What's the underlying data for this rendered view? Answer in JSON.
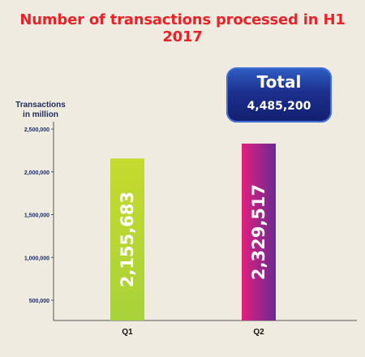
{
  "total": {
    "label": "Total",
    "value": "4,485,200"
  },
  "chart_data": {
    "type": "bar",
    "title": "Number of transactions processed in H1 2017",
    "ylabel": "Transactions in million",
    "xlabel": "",
    "categories": [
      "Q1",
      "Q2"
    ],
    "values": [
      2155683,
      2329517
    ],
    "value_labels": [
      "2,155,683",
      "2,329,517"
    ],
    "yticks": [
      500000,
      1000000,
      1500000,
      2000000,
      2500000
    ],
    "ytick_labels": [
      "500,000",
      "1,000,000",
      "1,500,000",
      "2,000,000",
      "2,500,000"
    ],
    "ylim": [
      0,
      2500000
    ],
    "grid": false,
    "colors": {
      "q1_top": "#c5da2e",
      "q1_bottom": "#a8d23a",
      "q2_top": "#e0207e",
      "q2_bottom": "#6a2a90",
      "title": "#e8232a",
      "axis_text": "#1d2b57"
    }
  }
}
